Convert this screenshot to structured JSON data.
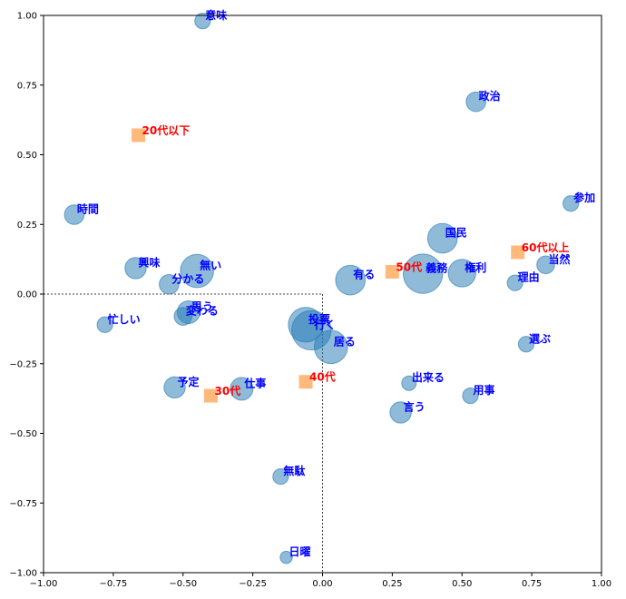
{
  "chart_data": {
    "type": "scatter",
    "title": "",
    "xlabel": "",
    "ylabel": "",
    "xlim": [
      -1.0,
      1.0
    ],
    "ylim": [
      -1.0,
      1.0
    ],
    "grid": false,
    "xticks": [
      "−1.00",
      "−0.75",
      "−0.50",
      "−0.25",
      "0.00",
      "0.25",
      "0.50",
      "0.75",
      "1.00"
    ],
    "yticks": [
      "−1.00",
      "−0.75",
      "−0.50",
      "−0.25",
      "0.00",
      "0.25",
      "0.50",
      "0.75",
      "1.00"
    ],
    "xtick_values": [
      -1.0,
      -0.75,
      -0.5,
      -0.25,
      0.0,
      0.25,
      0.5,
      0.75,
      1.0
    ],
    "ytick_values": [
      -1.0,
      -0.75,
      -0.5,
      -0.25,
      0.0,
      0.25,
      0.5,
      0.75,
      1.0
    ],
    "colors": {
      "word_marker": "#1f77b4",
      "word_label": "#0000ff",
      "group_marker": "#ff7f0e",
      "group_label": "#ff0000",
      "origin_lines": "#444444"
    },
    "series": [
      {
        "kind": "words",
        "marker": "circle",
        "points": [
          {
            "label": "意味",
            "x": -0.43,
            "y": 0.98,
            "size": 1.0
          },
          {
            "label": "政治",
            "x": 0.55,
            "y": 0.69,
            "size": 2.0
          },
          {
            "label": "参加",
            "x": 0.89,
            "y": 0.325,
            "size": 1.0
          },
          {
            "label": "時間",
            "x": -0.89,
            "y": 0.285,
            "size": 2.0
          },
          {
            "label": "国民",
            "x": 0.43,
            "y": 0.2,
            "size": 6.0
          },
          {
            "label": "当然",
            "x": 0.8,
            "y": 0.105,
            "size": 1.5
          },
          {
            "label": "興味",
            "x": -0.67,
            "y": 0.093,
            "size": 2.5
          },
          {
            "label": "無い",
            "x": -0.45,
            "y": 0.083,
            "size": 8.0
          },
          {
            "label": "義務",
            "x": 0.36,
            "y": 0.073,
            "size": 12.0
          },
          {
            "label": "権利",
            "x": 0.5,
            "y": 0.075,
            "size": 5.0
          },
          {
            "label": "有る",
            "x": 0.1,
            "y": 0.05,
            "size": 6.0
          },
          {
            "label": "分かる",
            "x": -0.55,
            "y": 0.035,
            "size": 2.0
          },
          {
            "label": "理由",
            "x": 0.69,
            "y": 0.04,
            "size": 1.0
          },
          {
            "label": "思う",
            "x": -0.48,
            "y": -0.065,
            "size": 3.0
          },
          {
            "label": "変わる",
            "x": -0.5,
            "y": -0.08,
            "size": 1.5
          },
          {
            "label": "忙しい",
            "x": -0.78,
            "y": -0.11,
            "size": 1.0
          },
          {
            "label": "投票",
            "x": -0.06,
            "y": -0.11,
            "size": 9.0
          },
          {
            "label": "行く",
            "x": -0.04,
            "y": -0.13,
            "size": 12.0
          },
          {
            "label": "居る",
            "x": 0.03,
            "y": -0.19,
            "size": 8.0
          },
          {
            "label": "選ぶ",
            "x": 0.73,
            "y": -0.18,
            "size": 1.0
          },
          {
            "label": "出来る",
            "x": 0.31,
            "y": -0.32,
            "size": 0.8
          },
          {
            "label": "予定",
            "x": -0.53,
            "y": -0.335,
            "size": 2.5
          },
          {
            "label": "仕事",
            "x": -0.29,
            "y": -0.34,
            "size": 3.0
          },
          {
            "label": "用事",
            "x": 0.53,
            "y": -0.365,
            "size": 1.0
          },
          {
            "label": "言う",
            "x": 0.28,
            "y": -0.425,
            "size": 2.5
          },
          {
            "label": "無駄",
            "x": -0.15,
            "y": -0.655,
            "size": 1.0
          },
          {
            "label": "日曜",
            "x": -0.13,
            "y": -0.945,
            "size": 0.4
          }
        ]
      },
      {
        "kind": "groups",
        "marker": "square",
        "points": [
          {
            "label": "20代以下",
            "x": -0.66,
            "y": 0.57
          },
          {
            "label": "60代以上",
            "x": 0.7,
            "y": 0.15
          },
          {
            "label": "50代",
            "x": 0.25,
            "y": 0.08
          },
          {
            "label": "40代",
            "x": -0.06,
            "y": -0.315
          },
          {
            "label": "30代",
            "x": -0.4,
            "y": -0.365
          }
        ]
      }
    ]
  }
}
